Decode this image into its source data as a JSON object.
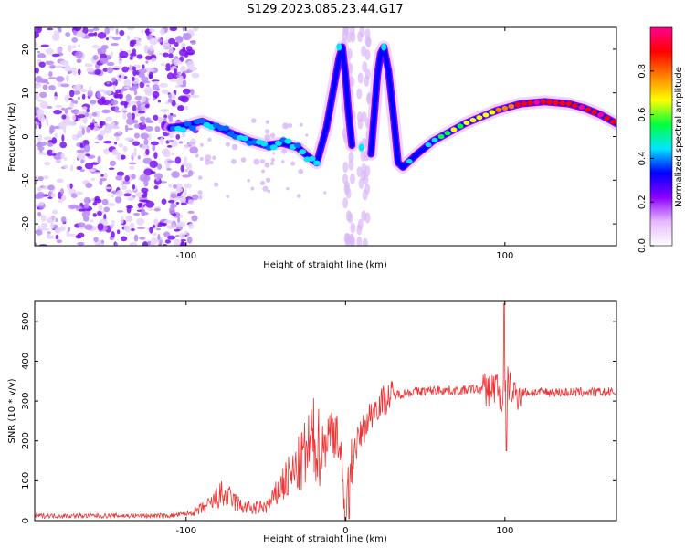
{
  "title": "S129.2023.085.23.44.G17",
  "chart_data": [
    {
      "type": "heatmap",
      "xlabel": "Height of straight line (km)",
      "ylabel": "Frequency (Hz)",
      "xlim": [
        -195,
        170
      ],
      "ylim": [
        -25,
        25
      ],
      "xticks": [
        -100,
        100
      ],
      "yticks": [
        -20,
        -10,
        0,
        10,
        20
      ],
      "colorbar": {
        "label": "Normalized spectral amplitude",
        "range": [
          0,
          1
        ],
        "ticks": [
          0.0,
          0.2,
          0.4,
          0.6,
          0.8
        ],
        "colors": [
          "#ffffff",
          "#e6b8ff",
          "#8a00ff",
          "#0000ff",
          "#00e5ff",
          "#00ff3c",
          "#ffff00",
          "#ff7f00",
          "#ff0000",
          "#ff0090"
        ]
      },
      "ridge_track": {
        "x": [
          -110,
          -100,
          -90,
          -80,
          -70,
          -60,
          -50,
          -40,
          -30,
          -22,
          -18,
          -12,
          -7,
          -4,
          -2,
          0,
          2,
          4
        ],
        "y": [
          2,
          2.5,
          3.5,
          2,
          0.5,
          -1,
          -2,
          -1.5,
          -2.5,
          -5,
          -6,
          2,
          12,
          18,
          20.5,
          14,
          5,
          -2
        ]
      },
      "ridge_track_2": {
        "x": [
          16,
          18,
          20,
          22,
          24,
          27,
          30,
          33,
          36,
          45,
          55,
          65,
          75,
          85,
          95,
          110,
          125,
          140,
          150,
          160,
          170
        ],
        "y": [
          -4,
          5,
          14,
          19,
          20.5,
          15,
          5,
          -6,
          -7,
          -4,
          -1,
          1,
          3,
          4.5,
          6,
          7.5,
          8,
          7.5,
          6.5,
          5,
          3
        ]
      },
      "noise_region_x": [
        -195,
        -100
      ]
    },
    {
      "type": "line",
      "xlabel": "Height of straight line (km)",
      "ylabel": "SNR (10 * v/v)",
      "xlim": [
        -195,
        170
      ],
      "ylim": [
        0,
        550
      ],
      "xticks": [
        -100,
        0,
        100
      ],
      "yticks": [
        0,
        100,
        200,
        300,
        400,
        500
      ],
      "color": "#ee3333",
      "series": [
        {
          "x": [
            -195,
            -150,
            -110,
            -95,
            -85,
            -78,
            -72,
            -65,
            -58,
            -50,
            -45,
            -40,
            -32,
            -26,
            -20,
            -15,
            -10,
            -5,
            0,
            2,
            5,
            10,
            15,
            20,
            25,
            30,
            40,
            50,
            60,
            70,
            80,
            90,
            95,
            98,
            100,
            102,
            105,
            110,
            120,
            140,
            160,
            170
          ],
          "y": [
            12,
            12,
            12,
            20,
            40,
            65,
            55,
            35,
            30,
            35,
            55,
            90,
            120,
            160,
            200,
            180,
            220,
            230,
            5,
            120,
            170,
            220,
            260,
            290,
            305,
            315,
            322,
            325,
            328,
            325,
            330,
            328,
            340,
            300,
            320,
            345,
            318,
            322,
            322,
            322,
            322,
            322
          ]
        }
      ]
    }
  ]
}
